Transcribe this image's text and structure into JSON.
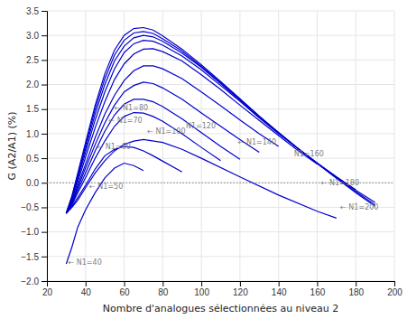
{
  "chart_data": {
    "type": "line",
    "xlabel": "Nombre d'analogues sélectionnées au niveau 2",
    "ylabel": "G (A2/A1) (%)",
    "xlim": [
      20,
      200
    ],
    "ylim": [
      -2,
      3.5
    ],
    "xticks": [
      20,
      40,
      60,
      80,
      100,
      120,
      140,
      160,
      180,
      200
    ],
    "yticks": [
      {
        "value": -2,
        "label": "−2.0"
      },
      {
        "value": -1.5,
        "label": "−1.5"
      },
      {
        "value": -1,
        "label": "−1.0"
      },
      {
        "value": -0.5,
        "label": "−0.5"
      },
      {
        "value": 0,
        "label": "0.0"
      },
      0.5,
      {
        "value": 1,
        "label": "1.0"
      },
      1.5,
      {
        "value": 2,
        "label": "2.0"
      },
      2.5,
      {
        "value": 3,
        "label": "3.0"
      },
      3.5
    ],
    "grid": true,
    "color": "#0000CC",
    "hlines": [
      0
    ],
    "series": [
      {
        "x": [
          30,
          33,
          36,
          40,
          45,
          50,
          55,
          60,
          65,
          70
        ],
        "values": [
          -1.65,
          -1.3,
          -0.9,
          -0.55,
          -0.2,
          0.1,
          0.3,
          0.4,
          0.35,
          0.25
        ]
      },
      {
        "x": [
          30,
          33,
          36,
          40,
          45,
          50,
          55,
          60,
          65,
          70,
          80,
          90,
          100,
          120,
          140,
          160,
          170
        ],
        "values": [
          -0.62,
          -0.5,
          -0.35,
          -0.1,
          0.2,
          0.45,
          0.65,
          0.78,
          0.85,
          0.88,
          0.82,
          0.68,
          0.5,
          0.12,
          -0.25,
          -0.58,
          -0.72
        ]
      },
      {
        "x": [
          30,
          33,
          36,
          40,
          45,
          50,
          55,
          60,
          65,
          70,
          75,
          80,
          90
        ],
        "values": [
          -0.62,
          -0.48,
          -0.3,
          -0.05,
          0.28,
          0.55,
          0.68,
          0.74,
          0.72,
          0.65,
          0.55,
          0.44,
          0.22
        ]
      },
      {
        "x": [
          30,
          33,
          36,
          40,
          45,
          50,
          55,
          60,
          65,
          70,
          75,
          80,
          90,
          100,
          110
        ],
        "values": [
          -0.62,
          -0.45,
          -0.2,
          0.1,
          0.5,
          0.85,
          1.15,
          1.35,
          1.43,
          1.42,
          1.35,
          1.25,
          1.0,
          0.72,
          0.45
        ]
      },
      {
        "x": [
          30,
          33,
          36,
          40,
          45,
          50,
          55,
          60,
          65,
          70,
          75,
          80,
          90,
          100,
          110,
          120
        ],
        "values": [
          -0.62,
          -0.42,
          -0.15,
          0.2,
          0.65,
          1.05,
          1.38,
          1.6,
          1.7,
          1.7,
          1.65,
          1.55,
          1.3,
          1.02,
          0.74,
          0.48
        ]
      },
      {
        "x": [
          30,
          33,
          36,
          40,
          45,
          50,
          55,
          60,
          65,
          70,
          75,
          80,
          90,
          100,
          110,
          120,
          130
        ],
        "values": [
          -0.62,
          -0.4,
          -0.1,
          0.3,
          0.78,
          1.22,
          1.58,
          1.85,
          1.98,
          2.05,
          2.02,
          1.93,
          1.7,
          1.42,
          1.15,
          0.88,
          0.62
        ]
      },
      {
        "x": [
          30,
          33,
          36,
          40,
          45,
          50,
          55,
          60,
          65,
          70,
          75,
          80,
          90,
          100,
          110,
          120,
          130,
          140
        ],
        "values": [
          -0.62,
          -0.38,
          -0.05,
          0.38,
          0.92,
          1.4,
          1.78,
          2.08,
          2.28,
          2.38,
          2.38,
          2.32,
          2.12,
          1.85,
          1.57,
          1.28,
          1.0,
          0.74
        ]
      },
      {
        "x": [
          30,
          33,
          36,
          40,
          45,
          50,
          55,
          60,
          65,
          70,
          75,
          80,
          90,
          100,
          110,
          120,
          130,
          140,
          150,
          160
        ],
        "values": [
          -0.62,
          -0.35,
          0.02,
          0.52,
          1.12,
          1.65,
          2.1,
          2.42,
          2.62,
          2.72,
          2.73,
          2.67,
          2.48,
          2.2,
          1.9,
          1.58,
          1.27,
          0.96,
          0.66,
          0.38
        ]
      },
      {
        "x": [
          30,
          33,
          36,
          40,
          45,
          50,
          55,
          60,
          65,
          70,
          75,
          80,
          90,
          100,
          110,
          120,
          130,
          140,
          150,
          160,
          170,
          180
        ],
        "values": [
          -0.62,
          -0.32,
          0.08,
          0.62,
          1.28,
          1.85,
          2.32,
          2.65,
          2.83,
          2.9,
          2.88,
          2.8,
          2.58,
          2.3,
          1.98,
          1.66,
          1.32,
          1.0,
          0.7,
          0.4,
          0.12,
          -0.14
        ]
      },
      {
        "x": [
          30,
          33,
          36,
          40,
          45,
          50,
          55,
          60,
          65,
          70,
          75,
          80,
          90,
          100,
          110,
          120,
          130,
          140,
          150,
          160,
          170,
          180,
          190
        ],
        "values": [
          -0.62,
          -0.3,
          0.12,
          0.7,
          1.4,
          2.0,
          2.48,
          2.78,
          2.95,
          3.0,
          2.97,
          2.88,
          2.64,
          2.35,
          2.02,
          1.68,
          1.34,
          1.02,
          0.7,
          0.4,
          0.12,
          -0.15,
          -0.4
        ]
      },
      {
        "x": [
          30,
          33,
          36,
          40,
          45,
          50,
          55,
          60,
          65,
          70,
          75,
          80,
          90,
          100,
          110,
          120,
          130,
          140,
          150,
          160,
          170,
          180,
          190
        ],
        "values": [
          -0.62,
          -0.28,
          0.16,
          0.76,
          1.5,
          2.12,
          2.6,
          2.9,
          3.05,
          3.08,
          3.04,
          2.93,
          2.68,
          2.37,
          2.04,
          1.7,
          1.35,
          1.02,
          0.7,
          0.4,
          0.1,
          -0.18,
          -0.45
        ]
      },
      {
        "x": [
          30,
          33,
          36,
          40,
          45,
          50,
          55,
          60,
          65,
          70,
          75,
          80,
          90,
          100,
          110,
          120,
          130,
          140,
          150,
          160,
          170,
          180,
          190
        ],
        "values": [
          -0.62,
          -0.26,
          0.2,
          0.82,
          1.58,
          2.22,
          2.7,
          3.0,
          3.14,
          3.16,
          3.11,
          2.99,
          2.72,
          2.4,
          2.06,
          1.71,
          1.36,
          1.02,
          0.7,
          0.39,
          0.09,
          -0.2,
          -0.48
        ]
      }
    ],
    "annotations": [
      {
        "text": "← N1=40",
        "x": 31,
        "y": -1.62
      },
      {
        "text": "← N1=50",
        "x": 42,
        "y": -0.08
      },
      {
        "text": "← N1=60",
        "x": 46,
        "y": 0.74
      },
      {
        "text": "← N1=70",
        "x": 52,
        "y": 1.27
      },
      {
        "text": "← N1=80",
        "x": 55,
        "y": 1.52
      },
      {
        "text": "← N1=100",
        "x": 72,
        "y": 1.05
      },
      {
        "text": "N1=120",
        "x": 92,
        "y": 1.15
      },
      {
        "text": "← N1=140",
        "x": 119,
        "y": 0.83
      },
      {
        "text": "N1=160",
        "x": 148,
        "y": 0.58
      },
      {
        "text": "← N1=180",
        "x": 162,
        "y": 0.0
      },
      {
        "text": "← N1=200",
        "x": 172,
        "y": -0.5
      }
    ]
  }
}
